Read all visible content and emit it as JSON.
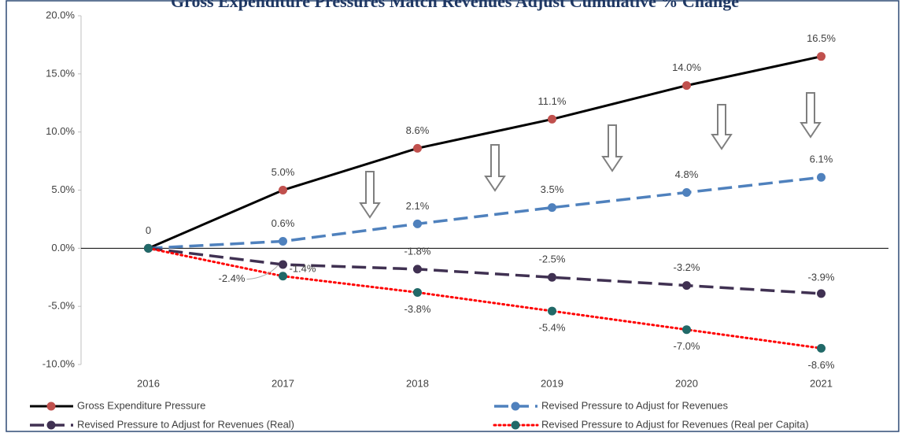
{
  "chart_data": {
    "type": "line",
    "title": "Gross Expenditure Pressures Match Revenues Adjust Cumulative % Change",
    "categories": [
      "2016",
      "2017",
      "2018",
      "2019",
      "2020",
      "2021"
    ],
    "series": [
      {
        "name": "Gross Expenditure Pressure",
        "color": "#000000",
        "marker_color": "#c0504d",
        "dash": "solid",
        "values": [
          0,
          5.0,
          8.6,
          11.1,
          14.0,
          16.5
        ],
        "value_labels": [
          "0",
          "5.0%",
          "8.6%",
          "11.1%",
          "14.0%",
          "16.5%"
        ]
      },
      {
        "name": "Revised Pressure to Adjust for Revenues",
        "color": "#4f81bd",
        "marker_color": "#4f81bd",
        "dash": "dash",
        "values": [
          0,
          0.6,
          2.1,
          3.5,
          4.8,
          6.1
        ],
        "value_labels": [
          null,
          "0.6%",
          "2.1%",
          "3.5%",
          "4.8%",
          "6.1%"
        ]
      },
      {
        "name": "Revised Pressure to Adjust for Revenues (Real)",
        "color": "#403152",
        "marker_color": "#403152",
        "dash": "dash",
        "values": [
          0,
          -1.4,
          -1.8,
          -2.5,
          -3.2,
          -3.9
        ],
        "value_labels": [
          null,
          "-1.4%",
          "-1.8%",
          "-2.5%",
          "-3.2%",
          "-3.9%"
        ]
      },
      {
        "name": "Revised Pressure to Adjust for Revenues (Real per Capita)",
        "color": "#ff0000",
        "marker_color": "#216968",
        "dash": "dot",
        "values": [
          0,
          -2.4,
          -3.8,
          -5.4,
          -7.0,
          -8.6
        ],
        "value_labels": [
          null,
          "-2.4%",
          "-3.8%",
          "-5.4%",
          "-7.0%",
          "-8.6%"
        ]
      }
    ],
    "ylim": [
      -10,
      20
    ],
    "yticks": [
      {
        "value": -10,
        "label": "-10.0%"
      },
      {
        "value": -5,
        "label": "-5.0%"
      },
      {
        "value": 0,
        "label": "0.0%"
      },
      {
        "value": 5,
        "label": "5.0%"
      },
      {
        "value": 10,
        "label": "10.0%"
      },
      {
        "value": 15,
        "label": "15.0%"
      },
      {
        "value": 20,
        "label": "20.0%"
      }
    ],
    "grid": false,
    "legend": "bottom"
  }
}
